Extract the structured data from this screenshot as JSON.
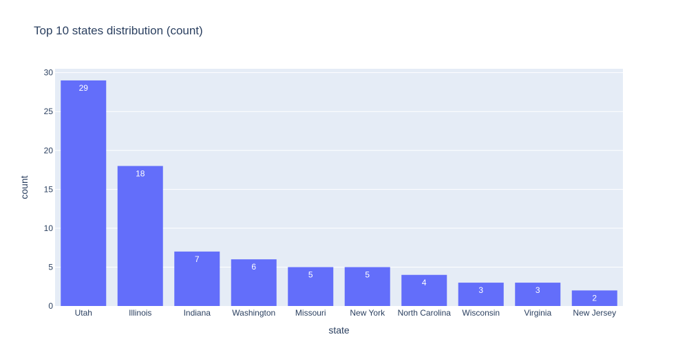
{
  "chart_data": {
    "type": "bar",
    "title": "Top 10 states distribution (count)",
    "xlabel": "state",
    "ylabel": "count",
    "categories": [
      "Utah",
      "Illinois",
      "Indiana",
      "Washington",
      "Missouri",
      "New York",
      "North Carolina",
      "Wisconsin",
      "Virginia",
      "New Jersey"
    ],
    "values": [
      29,
      18,
      7,
      6,
      5,
      5,
      4,
      3,
      3,
      2
    ],
    "ylim": [
      0,
      30.5
    ],
    "yticks": [
      0,
      5,
      10,
      15,
      20,
      25,
      30
    ],
    "grid": true,
    "data_labels": true,
    "colors": {
      "bar": "#636efa",
      "plot_background": "#e5ecf6",
      "gridline": "#ffffff",
      "text": "#2a3f5f",
      "data_label": "#ffffff"
    }
  }
}
